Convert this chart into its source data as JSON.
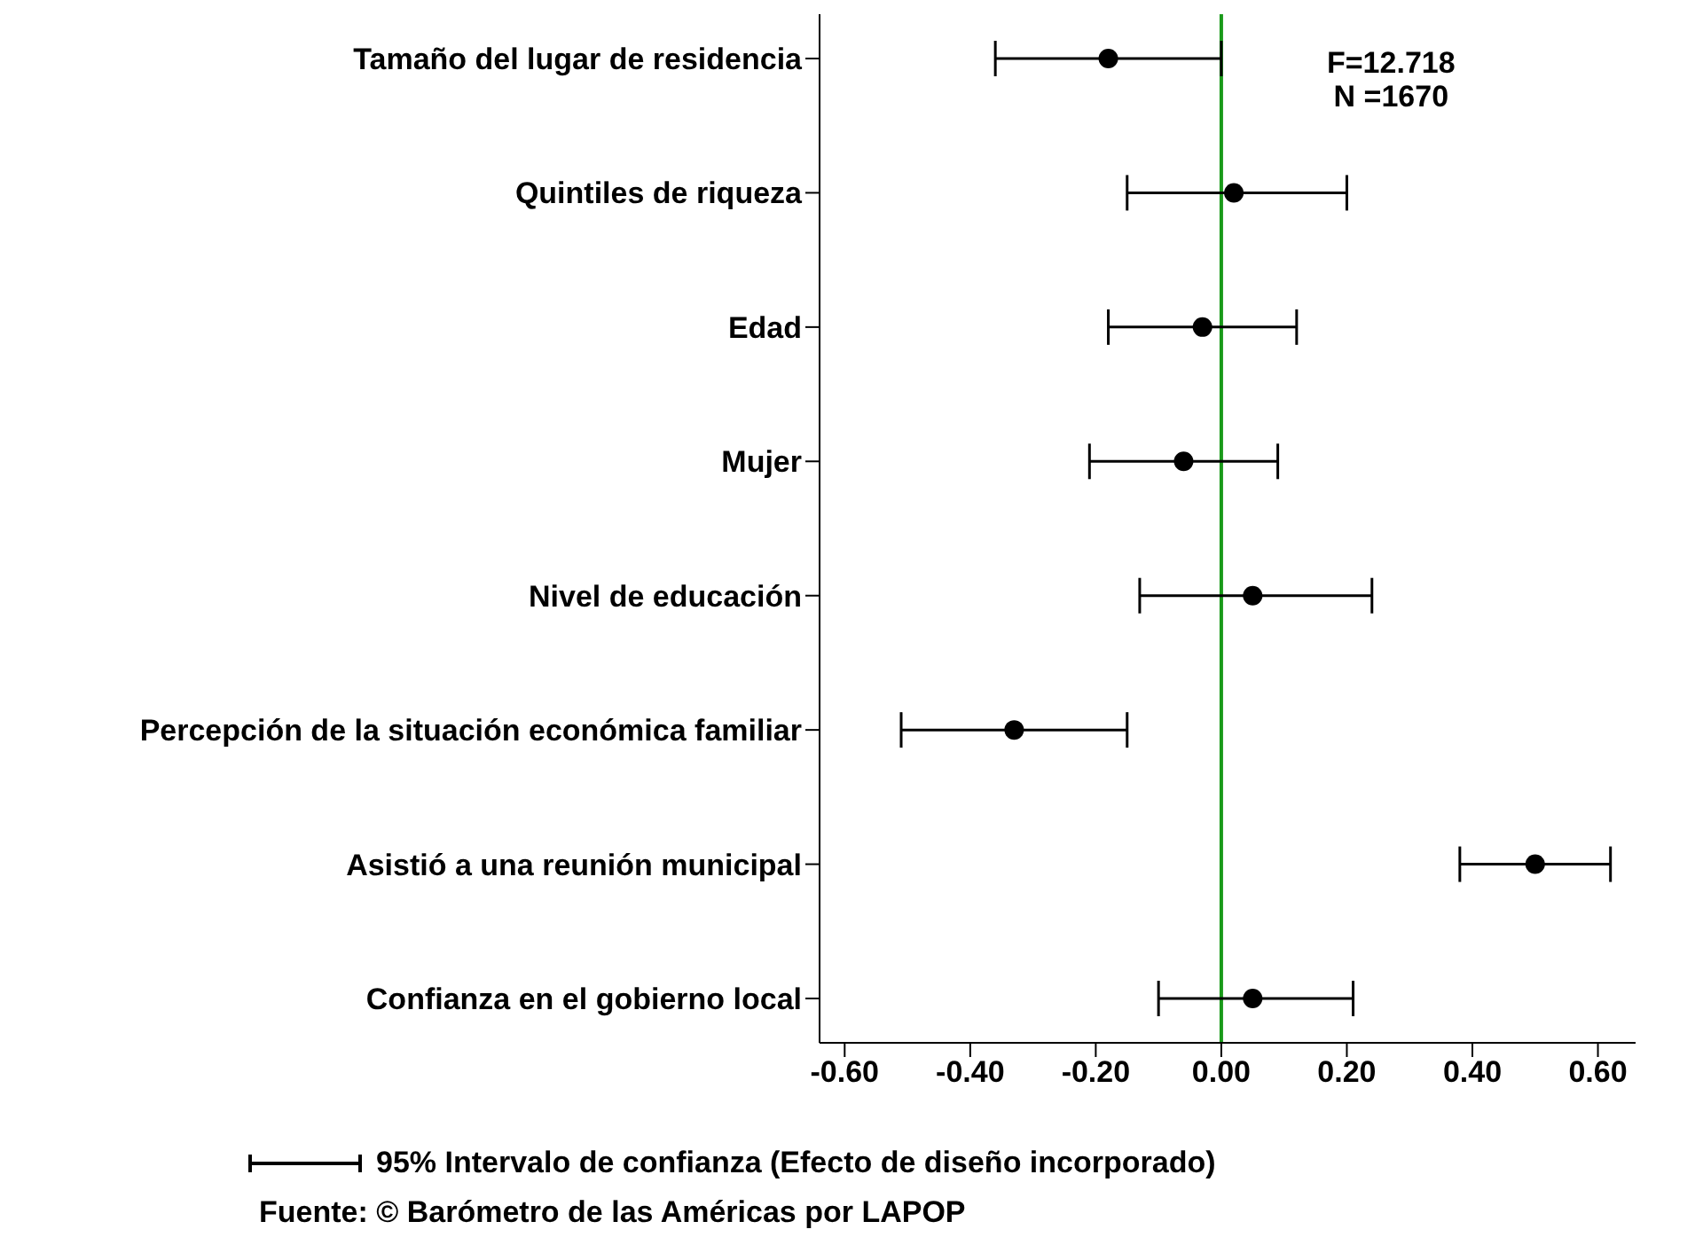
{
  "chart_data": {
    "type": "scatter",
    "orientation": "horizontal",
    "categories": [
      "Tamaño del lugar de residencia",
      "Quintiles de riqueza",
      "Edad",
      "Mujer",
      "Nivel de educación",
      "Percepción de la situación económica familiar",
      "Asistió a una reunión municipal",
      "Confianza en el gobierno local"
    ],
    "values": [
      -0.18,
      0.02,
      -0.03,
      -0.06,
      0.05,
      -0.33,
      0.5,
      0.05
    ],
    "errors": [
      [
        -0.36,
        0.0
      ],
      [
        -0.15,
        0.2
      ],
      [
        -0.18,
        0.12
      ],
      [
        -0.21,
        0.09
      ],
      [
        -0.13,
        0.24
      ],
      [
        -0.51,
        -0.15
      ],
      [
        0.38,
        0.62
      ],
      [
        -0.1,
        0.21
      ]
    ],
    "color": "#000000",
    "marker": "circle",
    "xlim": [
      -0.64,
      0.66
    ],
    "xticks": [
      {
        "value": -0.6,
        "label": "-0.60"
      },
      {
        "value": -0.4,
        "label": "-0.40"
      },
      {
        "value": -0.2,
        "label": "-0.20"
      },
      {
        "value": 0,
        "label": "0.00"
      },
      {
        "value": 0.2,
        "label": "0.20"
      },
      {
        "value": 0.4,
        "label": "0.40"
      },
      {
        "value": 0.6,
        "label": "0.60"
      }
    ],
    "ref_lines": [
      {
        "axis": "x",
        "value": 0,
        "color": "#1a9a1a"
      }
    ],
    "annotations": [
      "F=12.718",
      "N =1670",
      "95% Intervalo de confianza (Efecto de diseño incorporado)",
      "Fuente: © Barómetro de las Américas por LAPOP"
    ]
  }
}
